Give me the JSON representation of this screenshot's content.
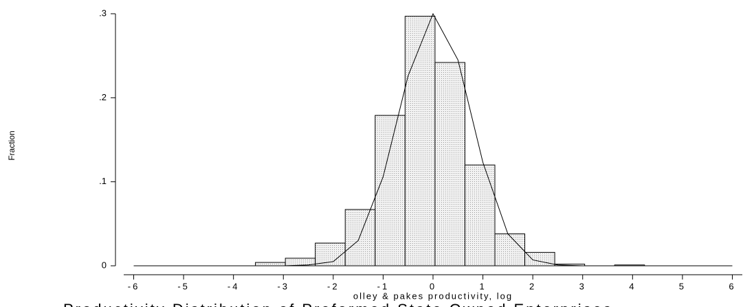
{
  "chart_data": {
    "type": "histogram",
    "title": "Productivity Distribution of Preformed State Owned Enterprises",
    "x_label": "olley & pakes productivity, log",
    "y_label": "Fraction",
    "bins": [
      -3.56,
      -2.96,
      -2.36,
      -1.76,
      -1.16,
      -0.56,
      0.04,
      0.64,
      1.24,
      1.84,
      2.44,
      3.04,
      3.64,
      4.24
    ],
    "values": [
      0.004,
      0.009,
      0.027,
      0.067,
      0.179,
      0.297,
      0.242,
      0.12,
      0.038,
      0.016,
      0.002,
      0,
      0.001
    ],
    "color": "#e6e6e6",
    "density": {
      "x": [
        -6,
        -3,
        -2.5,
        -2,
        -1.5,
        -1,
        -0.5,
        0,
        0.5,
        1,
        1.5,
        2,
        2.5,
        3,
        6
      ],
      "values": [
        0,
        0,
        0.001,
        0.005,
        0.03,
        0.106,
        0.226,
        0.3,
        0.245,
        0.123,
        0.038,
        0.007,
        0.001,
        0,
        0
      ]
    },
    "xlim": [
      -6.2,
      6.2
    ],
    "ylim": [
      0,
      0.3
    ],
    "xticks": [
      -6,
      -5,
      -4,
      -3,
      -2,
      -1,
      0,
      1,
      2,
      3,
      4,
      5,
      6
    ],
    "yticks": [
      0,
      {
        "value": 0.1,
        "label": ".1"
      },
      {
        "value": 0.2,
        "label": ".2"
      },
      {
        "value": 0.3,
        "label": ".3"
      }
    ]
  }
}
